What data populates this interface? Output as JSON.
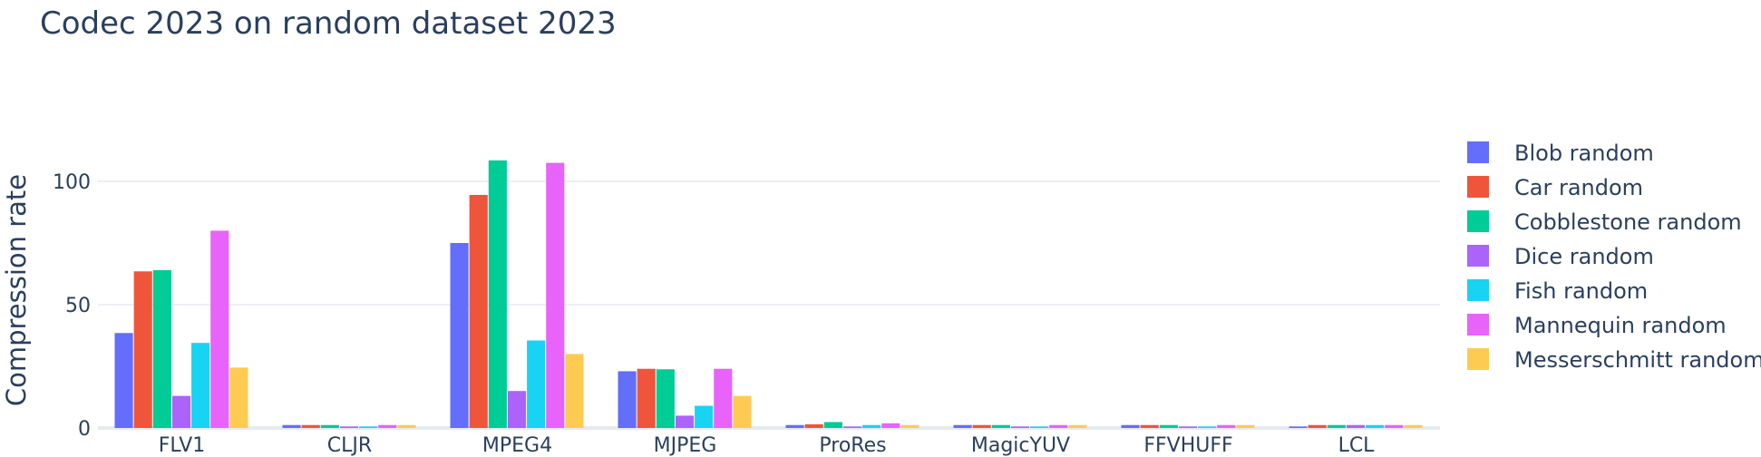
{
  "chart_data": {
    "type": "bar",
    "title": "Codec 2023 on random dataset 2023",
    "xlabel": "",
    "ylabel": "Compression rate",
    "ylim": [
      0,
      125
    ],
    "yticks": [
      0,
      50,
      100
    ],
    "grid": true,
    "legend_position": "right",
    "categories": [
      "FLV1",
      "CLJR",
      "MPEG4",
      "MJPEG",
      "ProRes",
      "MagicYUV",
      "FFVHUFF",
      "LCL"
    ],
    "series": [
      {
        "name": "Blob random",
        "color": "#636efa",
        "values": [
          38.5,
          1.2,
          75,
          23,
          1.2,
          1.2,
          1.2,
          0.6
        ]
      },
      {
        "name": "Car random",
        "color": "#EF553B",
        "values": [
          63.5,
          1.2,
          94.5,
          24,
          1.5,
          1.2,
          1.2,
          1.2
        ]
      },
      {
        "name": "Cobblestone random",
        "color": "#00cc96",
        "values": [
          64,
          1.2,
          108.5,
          23.8,
          2.4,
          1.2,
          1.2,
          1.2
        ]
      },
      {
        "name": "Dice random",
        "color": "#ab63fa",
        "values": [
          13,
          0.6,
          15,
          5,
          0.6,
          0.6,
          0.6,
          1.2
        ]
      },
      {
        "name": "Fish random",
        "color": "#19d3f3",
        "values": [
          34.5,
          0.6,
          35.5,
          9,
          1.2,
          0.6,
          0.6,
          1.2
        ]
      },
      {
        "name": "Mannequin random",
        "color": "#e763fa",
        "values": [
          80,
          1.2,
          107.5,
          24,
          1.9,
          1.2,
          1.2,
          1.2
        ]
      },
      {
        "name": "Messerschmitt random",
        "color": "#FECB52",
        "values": [
          24.5,
          1.2,
          30,
          13,
          1.2,
          1.2,
          1.2,
          1.2
        ]
      }
    ]
  }
}
